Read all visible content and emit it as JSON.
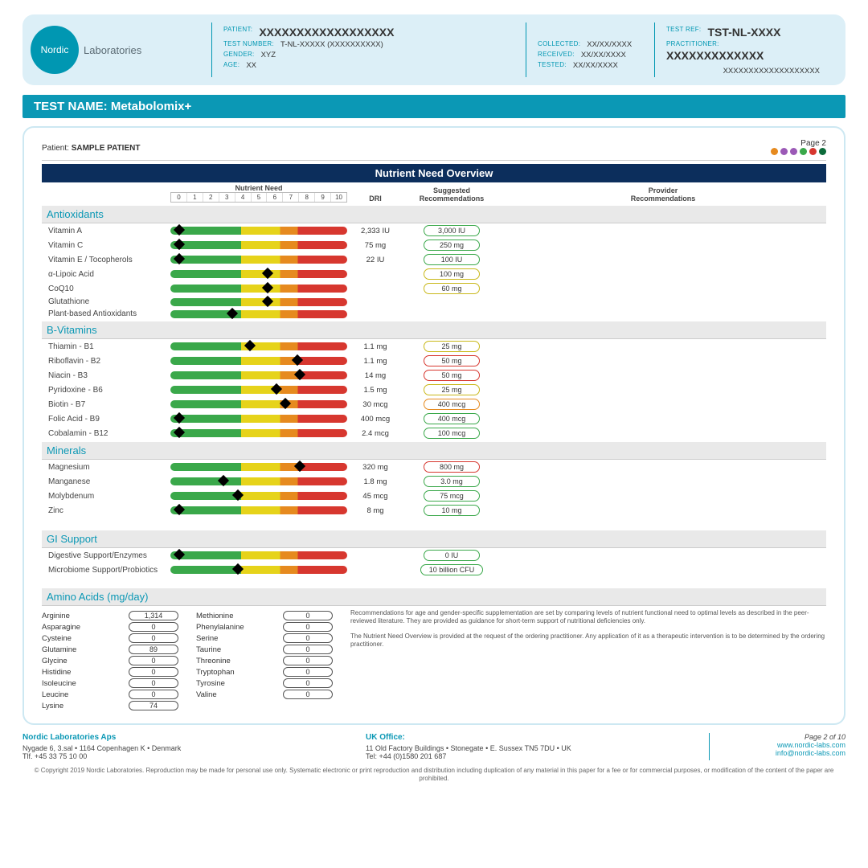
{
  "brand": {
    "logo_word": "Nordic",
    "logo_sub": "Laboratories"
  },
  "header": {
    "patient_l": "PATIENT:",
    "patient_v": "XXXXXXXXXXXXXXXXXX",
    "testnum_l": "TEST NUMBER:",
    "testnum_v": "T-NL-XXXXX (XXXXXXXXXX)",
    "gender_l": "GENDER:",
    "gender_v": "XYZ",
    "age_l": "AGE:",
    "age_v": "XX",
    "collected_l": "COLLECTED:",
    "collected_v": "XX/XX/XXXX",
    "received_l": "RECEIVED:",
    "received_v": "XX/XX/XXXX",
    "tested_l": "TESTED:",
    "tested_v": "XX/XX/XXXX",
    "testref_l": "TEST REF:",
    "testref_v": "TST-NL-XXXX",
    "pract_l": "PRACTITIONER:",
    "pract_v": "XXXXXXXXXXXXX",
    "pract_sub": "XXXXXXXXXXXXXXXXXXX"
  },
  "test_name": "TEST NAME: Metabolomix+",
  "patient_line_l": "Patient:",
  "patient_line_v": "SAMPLE PATIENT",
  "page_label": "Page 2",
  "dot_colors": [
    "#e68a1f",
    "#9b59b6",
    "#9b59b6",
    "#3aa84a",
    "#d7372f",
    "#0c6b3a"
  ],
  "overview_title": "Nutrient Need Overview",
  "cols": {
    "need": "Nutrient Need",
    "dri": "DRI",
    "sug": "Suggested\nRecommendations",
    "prov": "Provider\nRecommendations"
  },
  "ticks": [
    "0",
    "1",
    "2",
    "3",
    "4",
    "5",
    "6",
    "7",
    "8",
    "9",
    "10"
  ],
  "pill_colors": {
    "green": "#3aa84a",
    "yellow": "#c9b81a",
    "orange": "#e68a1f",
    "red": "#d7372f"
  },
  "groups": [
    {
      "title": "Antioxidants",
      "rows": [
        {
          "name": "Vitamin A",
          "pos": 0.5,
          "dri": "2,333 IU",
          "sug": "3,000 IU",
          "pc": "green"
        },
        {
          "name": "Vitamin C",
          "pos": 0.5,
          "dri": "75 mg",
          "sug": "250 mg",
          "pc": "green"
        },
        {
          "name": "Vitamin E / Tocopherols",
          "pos": 0.5,
          "dri": "22 IU",
          "sug": "100 IU",
          "pc": "green"
        },
        {
          "name": "α-Lipoic Acid",
          "pos": 5.5,
          "dri": "",
          "sug": "100 mg",
          "pc": "yellow"
        },
        {
          "name": "CoQ10",
          "pos": 5.5,
          "dri": "",
          "sug": "60 mg",
          "pc": "yellow"
        },
        {
          "name": "Glutathione",
          "pos": 5.5,
          "dri": "",
          "sug": "",
          "pc": ""
        },
        {
          "name": "Plant-based Antioxidants",
          "pos": 3.5,
          "dri": "",
          "sug": "",
          "pc": ""
        }
      ]
    },
    {
      "title": "B-Vitamins",
      "rows": [
        {
          "name": "Thiamin - B1",
          "pos": 4.5,
          "dri": "1.1 mg",
          "sug": "25 mg",
          "pc": "yellow"
        },
        {
          "name": "Riboflavin - B2",
          "pos": 7.2,
          "dri": "1.1 mg",
          "sug": "50 mg",
          "pc": "red"
        },
        {
          "name": "Niacin - B3",
          "pos": 7.3,
          "dri": "14 mg",
          "sug": "50 mg",
          "pc": "red"
        },
        {
          "name": "Pyridoxine - B6",
          "pos": 6.0,
          "dri": "1.5 mg",
          "sug": "25 mg",
          "pc": "yellow"
        },
        {
          "name": "Biotin - B7",
          "pos": 6.5,
          "dri": "30 mcg",
          "sug": "400 mcg",
          "pc": "orange"
        },
        {
          "name": "Folic Acid - B9",
          "pos": 0.5,
          "dri": "400 mcg",
          "sug": "400 mcg",
          "pc": "green"
        },
        {
          "name": "Cobalamin - B12",
          "pos": 0.5,
          "dri": "2.4 mcg",
          "sug": "100 mcg",
          "pc": "green"
        }
      ]
    },
    {
      "title": "Minerals",
      "rows": [
        {
          "name": "Magnesium",
          "pos": 7.3,
          "dri": "320 mg",
          "sug": "800 mg",
          "pc": "red"
        },
        {
          "name": "Manganese",
          "pos": 3.0,
          "dri": "1.8 mg",
          "sug": "3.0 mg",
          "pc": "green"
        },
        {
          "name": "Molybdenum",
          "pos": 3.8,
          "dri": "45 mcg",
          "sug": "75 mcg",
          "pc": "green"
        },
        {
          "name": "Zinc",
          "pos": 0.5,
          "dri": "8 mg",
          "sug": "10 mg",
          "pc": "green"
        }
      ]
    },
    {
      "title": "GI Support",
      "rows": [
        {
          "name": "Digestive Support/Enzymes",
          "pos": 0.5,
          "dri": "",
          "sug": "0 IU",
          "pc": "green"
        },
        {
          "name": "Microbiome Support/Probiotics",
          "pos": 3.8,
          "dri": "",
          "sug": "10 billion CFU",
          "pc": "green"
        }
      ]
    }
  ],
  "amino_title": "Amino Acids (mg/day)",
  "aminos_col1": [
    {
      "n": "Arginine",
      "v": "1,314"
    },
    {
      "n": "Asparagine",
      "v": "0"
    },
    {
      "n": "Cysteine",
      "v": "0"
    },
    {
      "n": "Glutamine",
      "v": "89"
    },
    {
      "n": "Glycine",
      "v": "0"
    },
    {
      "n": "Histidine",
      "v": "0"
    },
    {
      "n": "Isoleucine",
      "v": "0"
    },
    {
      "n": "Leucine",
      "v": "0"
    },
    {
      "n": "Lysine",
      "v": "74"
    }
  ],
  "aminos_col2": [
    {
      "n": "Methionine",
      "v": "0"
    },
    {
      "n": "Phenylalanine",
      "v": "0"
    },
    {
      "n": "Serine",
      "v": "0"
    },
    {
      "n": "Taurine",
      "v": "0"
    },
    {
      "n": "Threonine",
      "v": "0"
    },
    {
      "n": "Tryptophan",
      "v": "0"
    },
    {
      "n": "Tyrosine",
      "v": "0"
    },
    {
      "n": "Valine",
      "v": "0"
    }
  ],
  "amino_note1": "Recommendations for age and gender-specific supplementation are set by comparing levels of nutrient functional need to optimal levels as described in the peer-reviewed literature. They are provided as guidance for short-term support of nutritional deficiencies only.",
  "amino_note2": "The Nutrient Need Overview is provided at the request of the ordering practitioner. Any application of it as a therapeutic intervention is to be determined by the ordering practitioner.",
  "footer": {
    "dk_t": "Nordic Laboratories Aps",
    "dk_a": "Nygade 6, 3.sal • 1164 Copenhagen K • Denmark",
    "dk_p": "Tlf. +45 33 75 10 00",
    "uk_t": "UK Office:",
    "uk_a": "11 Old Factory Buildings • Stonegate • E. Sussex TN5 7DU • UK",
    "uk_p": "Tel: +44 (0)1580 201 687",
    "page": "Page 2 of 10",
    "web": "www.nordic-labs.com",
    "mail": "info@nordic-labs.com"
  },
  "copyright": "© Copyright 2019 Nordic Laboratories. Reproduction may be made for personal use only. Systematic electronic or print reproduction and distribution including duplication of any material in this paper for a fee or for commercial purposes, or modification of the content of the paper are prohibited."
}
